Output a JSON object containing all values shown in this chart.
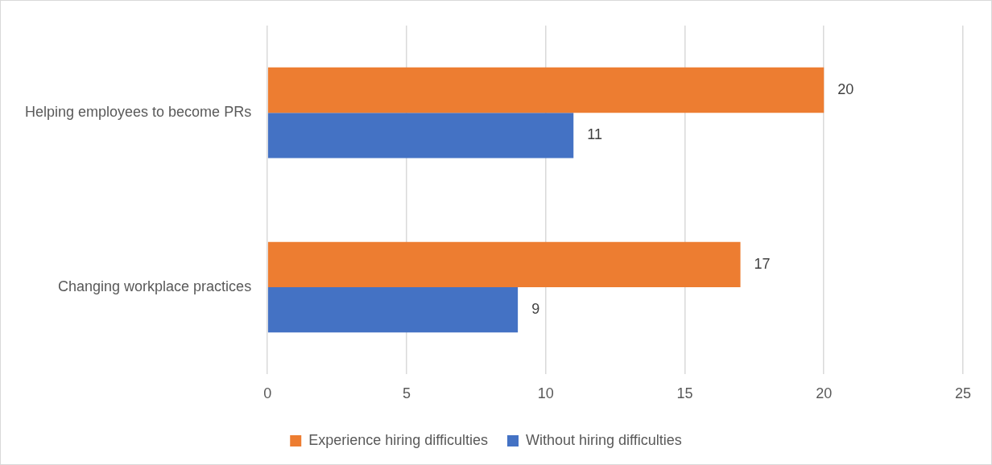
{
  "chart_data": {
    "type": "bar",
    "orientation": "horizontal",
    "categories": [
      "Helping employees to become PRs",
      "Changing workplace practices"
    ],
    "series": [
      {
        "name": "Experience hiring difficulties",
        "color": "#ed7d31",
        "values": [
          20,
          17
        ]
      },
      {
        "name": "Without hiring difficulties",
        "color": "#4472c4",
        "values": [
          11,
          9
        ]
      }
    ],
    "xlim": [
      0,
      25
    ],
    "xticks": [
      0,
      5,
      10,
      15,
      20,
      25
    ],
    "grid": "x",
    "legend": "bottom",
    "data_labels": true
  }
}
